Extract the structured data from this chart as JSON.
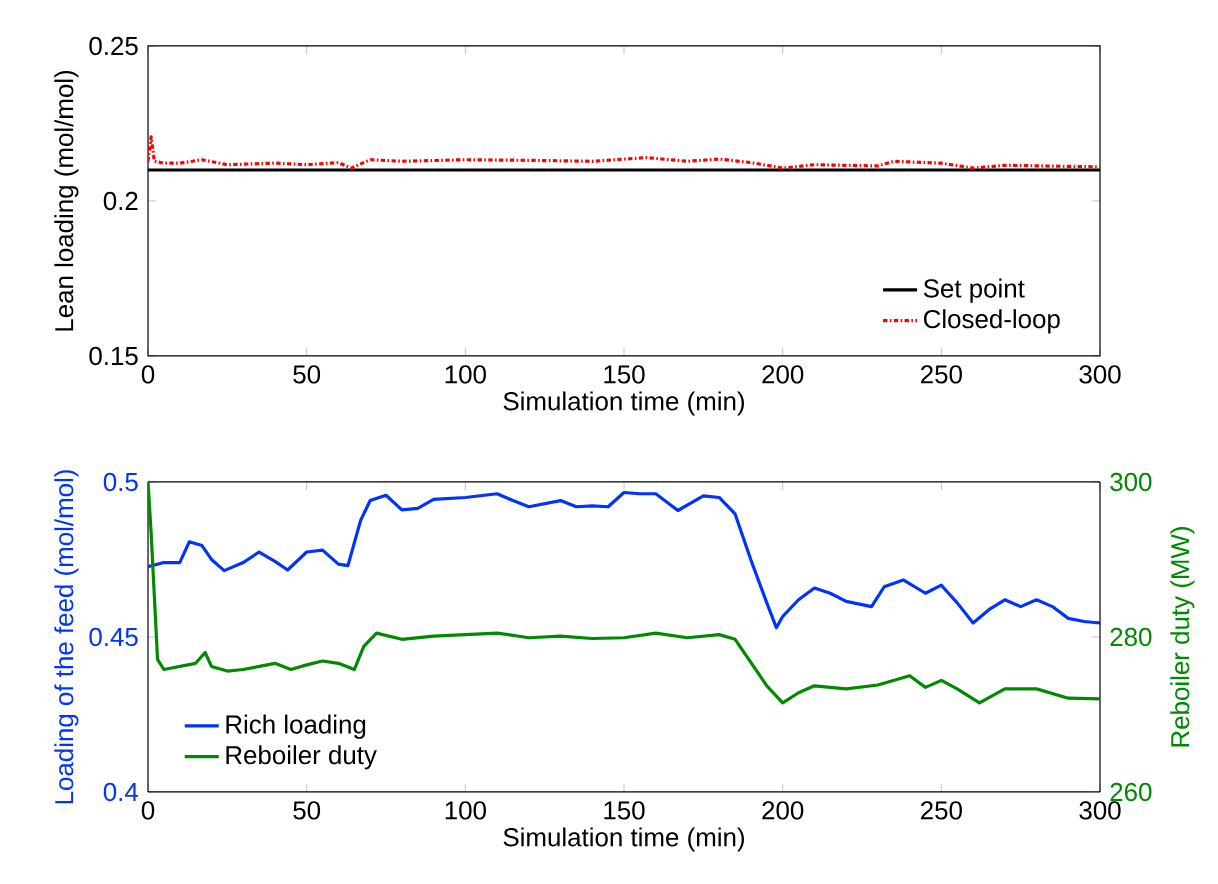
{
  "chart_data": [
    {
      "type": "line",
      "xlabel": "Simulation time (min)",
      "ylabel": "Lean loading (mol/mol)",
      "xlim": [
        0,
        300
      ],
      "xticks": [
        0,
        50,
        100,
        150,
        200,
        250,
        300
      ],
      "ylim": [
        0.15,
        0.25
      ],
      "yticks": [
        0.15,
        0.2,
        0.25
      ],
      "legend": "bottom right",
      "series": [
        {
          "name": "Set point",
          "color": "#000000",
          "line_style": "solid",
          "x": [
            0,
            300
          ],
          "values": [
            0.21,
            0.21
          ]
        },
        {
          "name": "Closed-loop",
          "color": "#ff0000",
          "line_style": "dotted",
          "x": [
            0,
            1,
            2,
            5,
            10,
            17,
            25,
            40,
            50,
            60,
            64,
            70,
            80,
            100,
            120,
            140,
            157,
            170,
            180,
            190,
            200,
            210,
            230,
            235,
            250,
            260,
            270,
            300
          ],
          "values": [
            0.2128,
            0.2207,
            0.2128,
            0.2122,
            0.2122,
            0.2133,
            0.2117,
            0.2122,
            0.2117,
            0.2124,
            0.2106,
            0.2133,
            0.2128,
            0.2133,
            0.2131,
            0.2128,
            0.214,
            0.2128,
            0.2135,
            0.2124,
            0.2106,
            0.2117,
            0.2113,
            0.2128,
            0.2122,
            0.2106,
            0.2115,
            0.211
          ]
        }
      ]
    },
    {
      "type": "line",
      "xlabel": "Simulation time (min)",
      "ylabel": "Loading of the feed (mol/mol)",
      "y2label": "Reboiler duty (MW)",
      "xlim": [
        0,
        300
      ],
      "xticks": [
        0,
        50,
        100,
        150,
        200,
        250,
        300
      ],
      "ylim": [
        0.4,
        0.5
      ],
      "yticks": [
        0.4,
        0.45,
        0.5
      ],
      "y2lim": [
        260,
        300
      ],
      "y2ticks": [
        260,
        280,
        300
      ],
      "legend": "bottom left",
      "series": [
        {
          "name": "Rich loading",
          "color": "#0033ff",
          "x": [
            0,
            5,
            10,
            13,
            17,
            20,
            24,
            30,
            35,
            40,
            44,
            50,
            55,
            60,
            63,
            67,
            70,
            75,
            80,
            85,
            90,
            100,
            110,
            115,
            120,
            125,
            130,
            135,
            140,
            145,
            150,
            155,
            160,
            167,
            175,
            180,
            185,
            190,
            195,
            198,
            200,
            205,
            210,
            215,
            220,
            228,
            232,
            238,
            245,
            250,
            255,
            260,
            265,
            270,
            275,
            280,
            285,
            290,
            295,
            300
          ],
          "values": [
            0.4727,
            0.474,
            0.474,
            0.4807,
            0.4795,
            0.475,
            0.4714,
            0.474,
            0.4774,
            0.4744,
            0.4716,
            0.4774,
            0.478,
            0.4735,
            0.473,
            0.4876,
            0.494,
            0.4957,
            0.491,
            0.4915,
            0.4944,
            0.495,
            0.4962,
            0.494,
            0.492,
            0.493,
            0.494,
            0.492,
            0.4923,
            0.492,
            0.4966,
            0.4962,
            0.4962,
            0.4908,
            0.4955,
            0.495,
            0.4897,
            0.4748,
            0.461,
            0.453,
            0.4566,
            0.462,
            0.4658,
            0.4641,
            0.4615,
            0.4598,
            0.4662,
            0.4684,
            0.4641,
            0.4667,
            0.461,
            0.4545,
            0.4588,
            0.462,
            0.4598,
            0.462,
            0.4598,
            0.456,
            0.455,
            0.4545
          ]
        },
        {
          "name": "Reboiler duty",
          "color": "#008a00",
          "axis": "y2",
          "x": [
            0,
            1,
            3,
            5,
            10,
            15,
            18,
            20,
            25,
            30,
            35,
            40,
            45,
            50,
            55,
            60,
            65,
            68,
            72,
            80,
            90,
            100,
            110,
            120,
            130,
            140,
            150,
            160,
            170,
            180,
            185,
            190,
            195,
            200,
            205,
            210,
            220,
            230,
            240,
            245,
            250,
            255,
            262,
            270,
            280,
            290,
            300
          ],
          "values": [
            300,
            293.3,
            277.1,
            275.8,
            276.2,
            276.6,
            278,
            276.2,
            275.6,
            275.8,
            276.2,
            276.6,
            275.8,
            276.4,
            276.9,
            276.6,
            275.8,
            278.8,
            280.5,
            279.7,
            280.1,
            280.3,
            280.5,
            279.9,
            280.1,
            279.8,
            279.9,
            280.5,
            279.9,
            280.3,
            279.7,
            276.7,
            273.7,
            271.5,
            272.8,
            273.7,
            273.3,
            273.8,
            275,
            273.5,
            274.4,
            273.3,
            271.5,
            273.3,
            273.3,
            272.1,
            272
          ]
        }
      ]
    }
  ]
}
